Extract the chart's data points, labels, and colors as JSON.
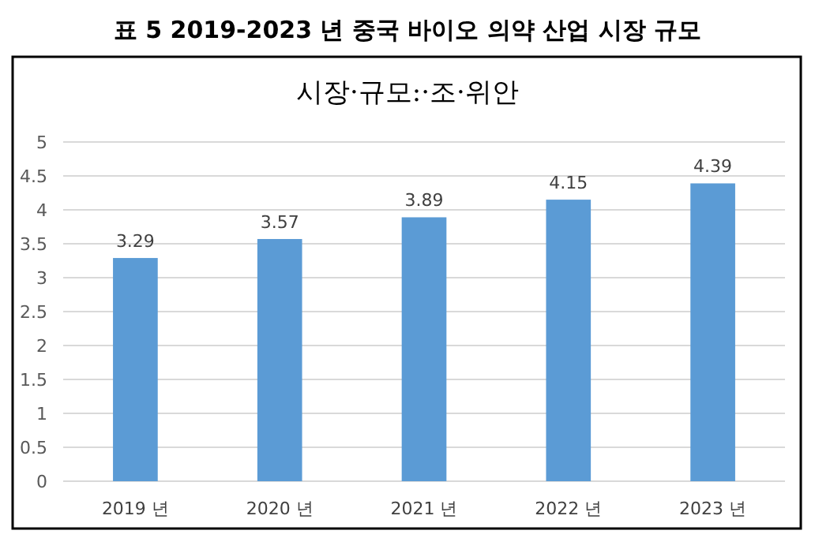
{
  "chart_data": {
    "type": "bar",
    "title": "표 5   2019-2023 년 중국 바이오 의약 산업 시장 규모",
    "subtitle": "시장·규모:·조·위안",
    "categories": [
      "2019 년",
      "2020 년",
      "2021 년",
      "2022 년",
      "2023 년"
    ],
    "values": [
      3.29,
      3.57,
      3.89,
      4.15,
      4.39
    ],
    "color": "#5b9bd5",
    "ylim": [
      0,
      5
    ],
    "yticks": [
      0,
      0.5,
      1,
      1.5,
      2,
      2.5,
      3,
      3.5,
      4,
      4.5,
      5
    ],
    "grid": "y",
    "data_labels": true
  }
}
